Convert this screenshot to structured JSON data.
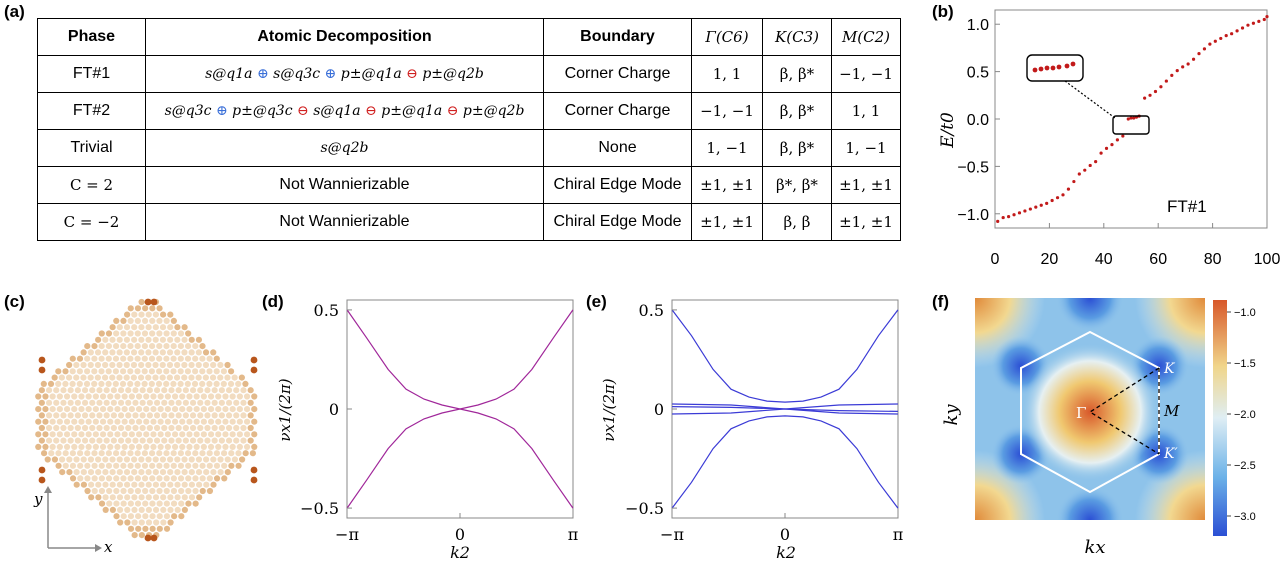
{
  "labels": {
    "a": "(a)",
    "b": "(b)",
    "c": "(c)",
    "d": "(d)",
    "e": "(e)",
    "f": "(f)"
  },
  "table": {
    "headers": [
      "Phase",
      "Atomic Decomposition",
      "Boundary",
      "Γ(C6)",
      "K(C3)",
      "M(C2)"
    ],
    "rows": [
      {
        "phase": "FT#1",
        "decomposition": "s@q1a ⊕ s@q3c ⊕ p±@q1a ⊖ p±@q2b",
        "boundary": "Corner Charge",
        "gamma": "1, 1",
        "k": "β, β*",
        "m": "−1, −1"
      },
      {
        "phase": "FT#2",
        "decomposition": "s@q3c ⊕ p±@q3c ⊖ s@q1a ⊖ p±@q1a ⊖ p±@q2b",
        "boundary": "Corner Charge",
        "gamma": "−1, −1",
        "k": "β, β*",
        "m": "1, 1"
      },
      {
        "phase": "Trivial",
        "decomposition": "s@q2b",
        "boundary": "None",
        "gamma": "1, −1",
        "k": "β, β*",
        "m": "1, −1"
      },
      {
        "phase": "C = 2",
        "decomposition": "Not Wannierizable",
        "boundary": "Chiral Edge Mode",
        "gamma": "±1, ±1",
        "k": "β*, β*",
        "m": "±1, ±1"
      },
      {
        "phase": "C = −2",
        "decomposition": "Not Wannierizable",
        "boundary": "Chiral Edge Mode",
        "gamma": "±1, ±1",
        "k": "β, β",
        "m": "±1, ±1"
      }
    ]
  },
  "panel_b": {
    "ylabel": "E/t0",
    "annotation": "FT#1",
    "xticks": [
      "0",
      "20",
      "40",
      "60",
      "80",
      "100"
    ],
    "yticks": [
      "1.0",
      "0.5",
      "0.0",
      "−0.5",
      "−1.0"
    ]
  },
  "panel_c": {
    "xaxis": "x",
    "yaxis": "y"
  },
  "panel_d": {
    "xlabel": "k2",
    "ylabel": "νx1/(2π)",
    "xticks": [
      "−π",
      "0",
      "π"
    ],
    "yticks": [
      "0.5",
      "0",
      "−0.5"
    ]
  },
  "panel_e": {
    "xlabel": "k2",
    "ylabel": "νx1/(2π)",
    "xticks": [
      "−π",
      "0",
      "π"
    ],
    "yticks": [
      "0.5",
      "0",
      "−0.5"
    ]
  },
  "panel_f": {
    "xlabel": "kx",
    "ylabel": "ky",
    "points": [
      "Γ",
      "K",
      "M",
      "K′"
    ],
    "colorbar_ticks": [
      "−1.0",
      "−1.5",
      "−2.0",
      "−2.5",
      "−3.0"
    ]
  },
  "colors": {
    "dot": "#c21a1a",
    "line_d": "#a0279a",
    "line_e": "#3b3bd6",
    "plus": "#3a6fd8",
    "minus": "#d02020"
  },
  "chart_data": [
    {
      "type": "scatter",
      "panel": "b",
      "ylabel": "E/t0",
      "xlim": [
        0,
        100
      ],
      "ylim": [
        -1.15,
        1.15
      ],
      "x": [
        1,
        3,
        5,
        7,
        9,
        11,
        13,
        15,
        17,
        19,
        21,
        23,
        25,
        27,
        29,
        31,
        33,
        35,
        37,
        39,
        41,
        43,
        45,
        47,
        49,
        50,
        51,
        52,
        53,
        55,
        57,
        59,
        61,
        63,
        65,
        67,
        69,
        71,
        73,
        75,
        77,
        79,
        81,
        83,
        85,
        87,
        89,
        91,
        93,
        95,
        97,
        99,
        100
      ],
      "y": [
        -1.08,
        -1.04,
        -1.03,
        -1.01,
        -0.99,
        -0.97,
        -0.95,
        -0.93,
        -0.91,
        -0.89,
        -0.86,
        -0.83,
        -0.8,
        -0.74,
        -0.66,
        -0.58,
        -0.54,
        -0.49,
        -0.45,
        -0.36,
        -0.31,
        -0.27,
        -0.22,
        -0.18,
        0.0,
        0.01,
        0.01,
        0.02,
        0.03,
        0.22,
        0.25,
        0.29,
        0.34,
        0.4,
        0.46,
        0.51,
        0.55,
        0.58,
        0.63,
        0.69,
        0.74,
        0.79,
        0.82,
        0.85,
        0.88,
        0.9,
        0.93,
        0.96,
        0.99,
        1.01,
        1.03,
        1.05,
        1.08
      ]
    },
    {
      "type": "line",
      "panel": "d",
      "xlabel": "k2",
      "ylabel": "νx1/(2π)",
      "xlim": [
        -3.1416,
        3.1416
      ],
      "ylim": [
        -0.55,
        0.55
      ],
      "series": [
        {
          "x": [
            -3.14,
            -2.6,
            -2.0,
            -1.5,
            -1.0,
            -0.5,
            0,
            0.5,
            1.0,
            1.5,
            2.0,
            2.6,
            3.14
          ],
          "values": [
            0.5,
            0.36,
            0.2,
            0.1,
            0.05,
            0.02,
            0,
            -0.02,
            -0.05,
            -0.1,
            -0.2,
            -0.36,
            -0.5
          ]
        },
        {
          "x": [
            -3.14,
            -2.6,
            -2.0,
            -1.5,
            -1.0,
            -0.5,
            0,
            0.5,
            1.0,
            1.5,
            2.0,
            2.6,
            3.14
          ],
          "values": [
            -0.5,
            -0.36,
            -0.2,
            -0.1,
            -0.05,
            -0.02,
            0,
            0.02,
            0.05,
            0.1,
            0.2,
            0.36,
            0.5
          ]
        }
      ]
    },
    {
      "type": "line",
      "panel": "e",
      "xlabel": "k2",
      "ylabel": "νx1/(2π)",
      "xlim": [
        -3.1416,
        3.1416
      ],
      "ylim": [
        -0.55,
        0.55
      ],
      "series": [
        {
          "x": [
            -3.14,
            -2.6,
            -2.0,
            -1.5,
            -1.0,
            -0.5,
            0,
            0.5,
            1.0,
            1.5,
            2.0,
            2.6,
            3.14
          ],
          "values": [
            0.5,
            0.37,
            0.2,
            0.1,
            0.06,
            0.04,
            0.035,
            0.04,
            0.06,
            0.1,
            0.2,
            0.37,
            0.5
          ]
        },
        {
          "x": [
            -3.14,
            -2.6,
            -2.0,
            -1.5,
            -1.0,
            -0.5,
            0,
            0.5,
            1.0,
            1.5,
            2.0,
            2.6,
            3.14
          ],
          "values": [
            -0.5,
            -0.37,
            -0.2,
            -0.1,
            -0.06,
            -0.04,
            -0.035,
            -0.04,
            -0.06,
            -0.1,
            -0.2,
            -0.37,
            -0.5
          ]
        },
        {
          "x": [
            -3.14,
            -1.5,
            0,
            1.5,
            3.14
          ],
          "values": [
            0.025,
            0.02,
            0.0,
            -0.02,
            -0.025
          ]
        },
        {
          "x": [
            -3.14,
            -1.5,
            0,
            1.5,
            3.14
          ],
          "values": [
            -0.025,
            -0.02,
            0.0,
            0.02,
            0.025
          ]
        },
        {
          "x": [
            -3.14,
            -1.5,
            0,
            1.5,
            3.14
          ],
          "values": [
            0.012,
            0.008,
            0.0,
            -0.008,
            -0.012
          ]
        }
      ]
    },
    {
      "type": "heatmap",
      "panel": "f",
      "xlabel": "kx",
      "ylabel": "ky",
      "colorbar_range": [
        -3.2,
        -0.8
      ]
    }
  ]
}
